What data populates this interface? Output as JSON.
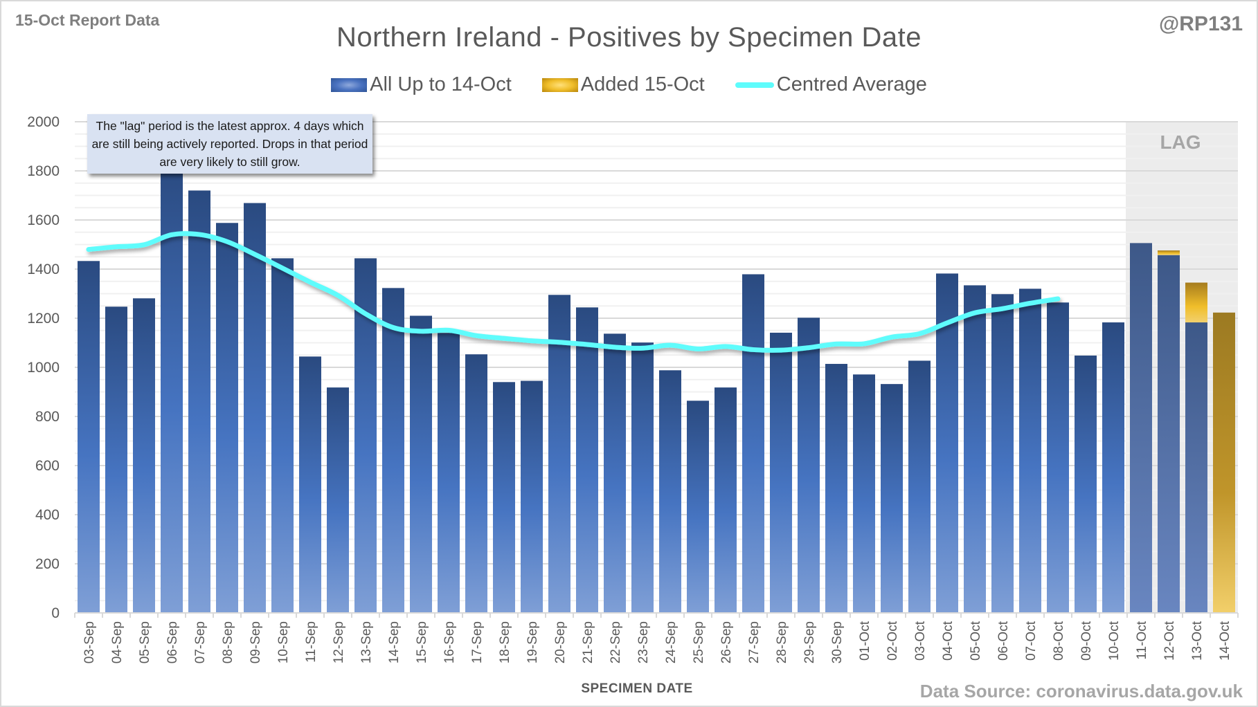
{
  "header": {
    "report_label": "15-Oct Report Data",
    "handle": "@RP131",
    "source": "Data Source: coronavirus.data.gov.uk"
  },
  "annotation": {
    "text": "The \"lag\" period is the latest approx. 4 days which are still being actively reported.  Drops in that period are very likely to still grow.",
    "lag_label": "LAG"
  },
  "colors": {
    "blue_series": "#2f5597",
    "gold_series": "#e8b923",
    "average_line": "#5efcfc",
    "lag_shade": "#ececec",
    "text": "#595959"
  },
  "chart_data": {
    "type": "bar",
    "stacked": true,
    "title": "Northern Ireland - Positives by Specimen Date",
    "xlabel": "SPECIMEN DATE",
    "ylabel": "",
    "ylim": [
      0,
      2000
    ],
    "yticks": [
      0,
      200,
      400,
      600,
      800,
      1000,
      1200,
      1400,
      1600,
      1800,
      2000
    ],
    "grid": true,
    "legend_position": "top-center",
    "lag_period": [
      "11-Oct",
      "14-Oct"
    ],
    "categories": [
      "03-Sep",
      "04-Sep",
      "05-Sep",
      "06-Sep",
      "07-Sep",
      "08-Sep",
      "09-Sep",
      "10-Sep",
      "11-Sep",
      "12-Sep",
      "13-Sep",
      "14-Sep",
      "15-Sep",
      "16-Sep",
      "17-Sep",
      "18-Sep",
      "19-Sep",
      "20-Sep",
      "21-Sep",
      "22-Sep",
      "23-Sep",
      "24-Sep",
      "25-Sep",
      "26-Sep",
      "27-Sep",
      "28-Sep",
      "29-Sep",
      "30-Sep",
      "01-Oct",
      "02-Oct",
      "03-Oct",
      "04-Oct",
      "05-Oct",
      "06-Oct",
      "07-Oct",
      "08-Oct",
      "09-Oct",
      "10-Oct",
      "11-Oct",
      "12-Oct",
      "13-Oct",
      "14-Oct"
    ],
    "series": [
      {
        "name": "All Up to 14-Oct",
        "type": "bar",
        "values": [
          1433,
          1247,
          1281,
          1840,
          1720,
          1588,
          1669,
          1444,
          1044,
          918,
          1444,
          1323,
          1210,
          1140,
          1053,
          940,
          945,
          1295,
          1244,
          1137,
          1101,
          988,
          864,
          918,
          1379,
          1141,
          1202,
          1014,
          971,
          932,
          1027,
          1382,
          1334,
          1298,
          1320,
          1264,
          1048,
          1183,
          1506,
          1457,
          1183,
          0
        ]
      },
      {
        "name": "Added 15-Oct",
        "type": "bar",
        "values": [
          0,
          0,
          0,
          0,
          0,
          0,
          0,
          0,
          0,
          0,
          0,
          0,
          0,
          0,
          0,
          0,
          0,
          0,
          0,
          0,
          0,
          0,
          0,
          0,
          0,
          0,
          0,
          0,
          0,
          0,
          0,
          0,
          0,
          0,
          0,
          0,
          0,
          0,
          0,
          19,
          162,
          1223
        ]
      },
      {
        "name": "Centred Average",
        "type": "line",
        "values": [
          1480,
          1491,
          1499,
          1540,
          1541,
          1512,
          1460,
          1404,
          1347,
          1293,
          1218,
          1162,
          1147,
          1151,
          1129,
          1118,
          1108,
          1102,
          1093,
          1082,
          1078,
          1090,
          1075,
          1085,
          1072,
          1070,
          1080,
          1095,
          1096,
          1123,
          1137,
          1181,
          1222,
          1239,
          1261,
          1279,
          null,
          null,
          null,
          null,
          null,
          null
        ]
      }
    ]
  }
}
